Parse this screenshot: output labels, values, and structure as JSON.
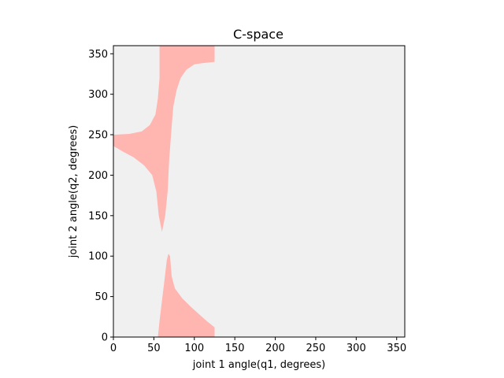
{
  "chart_data": {
    "type": "heatmap",
    "title": "C-space",
    "xlabel": "joint 1 angle(q1, degrees)",
    "ylabel": "joint 2 angle(q2, degrees)",
    "xlim": [
      0,
      360
    ],
    "ylim": [
      0,
      360
    ],
    "x_ticks": [
      "0",
      "50",
      "100",
      "150",
      "200",
      "250",
      "300",
      "350"
    ],
    "y_ticks": [
      "0",
      "50",
      "100",
      "150",
      "200",
      "250",
      "300",
      "350"
    ],
    "grid": false,
    "colors": {
      "free": "#f0f0f0",
      "collision": "#ffb5b0"
    },
    "collision_regions": [
      {
        "name": "upper-region",
        "boundary": [
          [
            0,
            250
          ],
          [
            20,
            251
          ],
          [
            35,
            254
          ],
          [
            45,
            262
          ],
          [
            52,
            275
          ],
          [
            55,
            295
          ],
          [
            57,
            320
          ],
          [
            57,
            345
          ],
          [
            57,
            360
          ],
          [
            125,
            360
          ],
          [
            125,
            340
          ],
          [
            115,
            339
          ],
          [
            100,
            337
          ],
          [
            90,
            330
          ],
          [
            83,
            320
          ],
          [
            78,
            305
          ],
          [
            74,
            285
          ],
          [
            72,
            260
          ],
          [
            69,
            220
          ],
          [
            67,
            180
          ],
          [
            64,
            150
          ],
          [
            60,
            130
          ],
          [
            56,
            150
          ],
          [
            53,
            180
          ],
          [
            48,
            200
          ],
          [
            38,
            212
          ],
          [
            25,
            222
          ],
          [
            12,
            229
          ],
          [
            0,
            236
          ]
        ]
      },
      {
        "name": "lower-region",
        "boundary": [
          [
            55,
            0
          ],
          [
            57,
            20
          ],
          [
            60,
            45
          ],
          [
            63,
            70
          ],
          [
            66,
            95
          ],
          [
            68,
            103
          ],
          [
            70,
            100
          ],
          [
            72,
            75
          ],
          [
            76,
            60
          ],
          [
            85,
            48
          ],
          [
            95,
            38
          ],
          [
            105,
            29
          ],
          [
            115,
            20
          ],
          [
            125,
            12
          ],
          [
            125,
            0
          ]
        ]
      }
    ]
  }
}
